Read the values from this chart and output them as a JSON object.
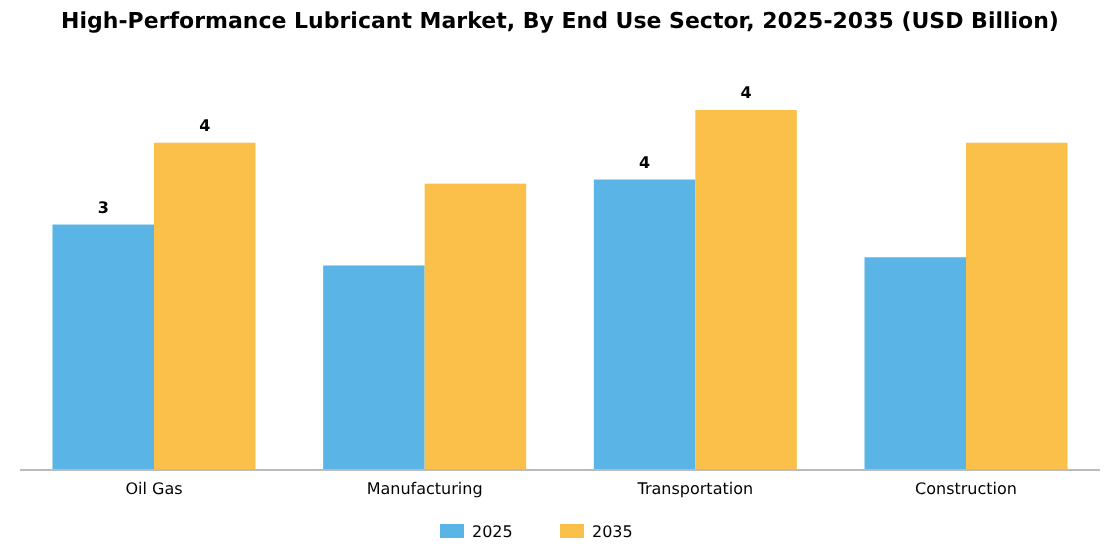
{
  "chart_data": {
    "type": "bar",
    "title": "High-Performance Lubricant Market, By End Use Sector, 2025-2035 (USD Billion)",
    "categories": [
      "Oil Gas",
      "Manufacturing",
      "Transportation",
      "Construction"
    ],
    "legend": "bottom",
    "series": [
      {
        "name": "2025",
        "color": "#5ab4e5",
        "values": [
          3.0,
          2.5,
          3.55,
          2.6
        ],
        "value_labels": [
          "3",
          null,
          "4",
          null
        ]
      },
      {
        "name": "2035",
        "color": "#fbc04a",
        "values": [
          4.0,
          3.5,
          4.4,
          4.0
        ],
        "value_labels": [
          "4",
          null,
          "4",
          null
        ]
      }
    ]
  }
}
